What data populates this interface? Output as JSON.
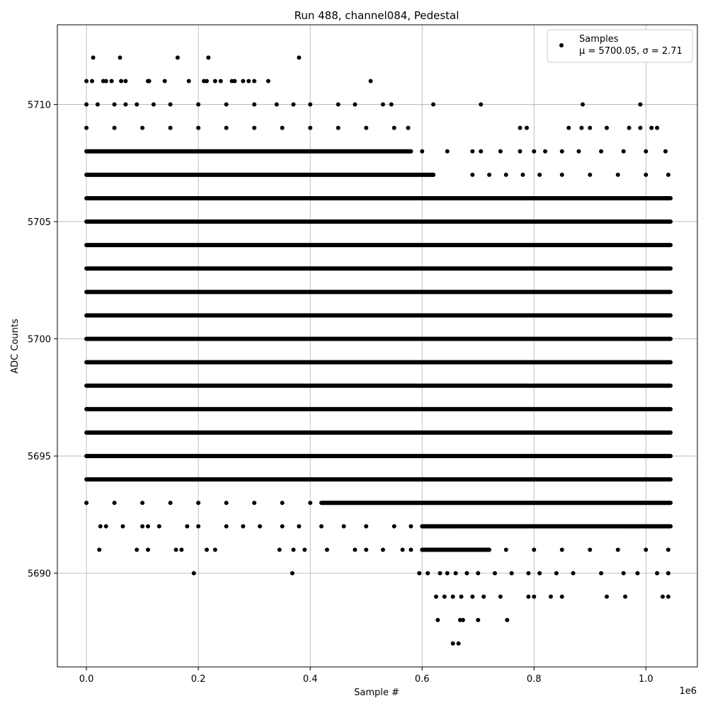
{
  "chart_data": {
    "type": "scatter",
    "title": "Run 488, channel084, Pedestal",
    "xlabel": "Sample #",
    "ylabel": "ADC Counts",
    "x_offset_label": "1e6",
    "xlim": [
      -0.052,
      1.092
    ],
    "ylim": [
      5686.0,
      5713.4
    ],
    "x_ticks": [
      0.0,
      0.2,
      0.4,
      0.6,
      0.8,
      1.0
    ],
    "x_tick_labels": [
      "0.0",
      "0.2",
      "0.4",
      "0.6",
      "0.8",
      "1.0"
    ],
    "y_ticks": [
      5690,
      5695,
      5700,
      5705,
      5710
    ],
    "y_tick_labels": [
      "5690",
      "5695",
      "5700",
      "5705",
      "5710"
    ],
    "grid": true,
    "legend_position": "top-right",
    "marker_color": "#000000",
    "series": [
      {
        "name": "Samples",
        "stats_label": "μ = 5700.05, σ = 2.71",
        "x_max": 1.044,
        "dense_bands": [
          {
            "y": 5694,
            "x_range": [
              0.0,
              1.044
            ]
          },
          {
            "y": 5695,
            "x_range": [
              0.0,
              1.044
            ]
          },
          {
            "y": 5696,
            "x_range": [
              0.0,
              1.044
            ]
          },
          {
            "y": 5697,
            "x_range": [
              0.0,
              1.044
            ]
          },
          {
            "y": 5698,
            "x_range": [
              0.0,
              1.044
            ]
          },
          {
            "y": 5699,
            "x_range": [
              0.0,
              1.044
            ]
          },
          {
            "y": 5700,
            "x_range": [
              0.0,
              1.044
            ]
          },
          {
            "y": 5701,
            "x_range": [
              0.0,
              1.044
            ]
          },
          {
            "y": 5702,
            "x_range": [
              0.0,
              1.044
            ]
          },
          {
            "y": 5703,
            "x_range": [
              0.0,
              1.044
            ]
          },
          {
            "y": 5704,
            "x_range": [
              0.0,
              1.044
            ]
          },
          {
            "y": 5705,
            "x_range": [
              0.0,
              1.044
            ]
          },
          {
            "y": 5706,
            "x_range": [
              0.0,
              1.044
            ]
          },
          {
            "y": 5707,
            "x_range": [
              0.0,
              0.62
            ]
          },
          {
            "y": 5708,
            "x_range": [
              0.0,
              0.58
            ]
          },
          {
            "y": 5693,
            "x_range": [
              0.42,
              1.044
            ]
          },
          {
            "y": 5692,
            "x_range": [
              0.6,
              1.044
            ]
          },
          {
            "y": 5691,
            "x_range": [
              0.6,
              0.72
            ]
          }
        ],
        "sparse_points": [
          [
            0.0,
            5711
          ],
          [
            0.01,
            5711
          ],
          [
            0.012,
            5712
          ],
          [
            0.03,
            5711
          ],
          [
            0.035,
            5711
          ],
          [
            0.045,
            5711
          ],
          [
            0.06,
            5712
          ],
          [
            0.062,
            5711
          ],
          [
            0.07,
            5711
          ],
          [
            0.11,
            5711
          ],
          [
            0.112,
            5711
          ],
          [
            0.14,
            5711
          ],
          [
            0.163,
            5712
          ],
          [
            0.183,
            5711
          ],
          [
            0.21,
            5711
          ],
          [
            0.215,
            5711
          ],
          [
            0.218,
            5712
          ],
          [
            0.23,
            5711
          ],
          [
            0.24,
            5711
          ],
          [
            0.26,
            5711
          ],
          [
            0.265,
            5711
          ],
          [
            0.28,
            5711
          ],
          [
            0.29,
            5711
          ],
          [
            0.3,
            5711
          ],
          [
            0.325,
            5711
          ],
          [
            0.38,
            5712
          ],
          [
            0.508,
            5711
          ],
          [
            0.0,
            5710
          ],
          [
            0.02,
            5710
          ],
          [
            0.05,
            5710
          ],
          [
            0.07,
            5710
          ],
          [
            0.09,
            5710
          ],
          [
            0.12,
            5710
          ],
          [
            0.15,
            5710
          ],
          [
            0.2,
            5710
          ],
          [
            0.25,
            5710
          ],
          [
            0.3,
            5710
          ],
          [
            0.34,
            5710
          ],
          [
            0.37,
            5710
          ],
          [
            0.4,
            5710
          ],
          [
            0.45,
            5710
          ],
          [
            0.48,
            5710
          ],
          [
            0.53,
            5710
          ],
          [
            0.545,
            5710
          ],
          [
            0.62,
            5710
          ],
          [
            0.705,
            5710
          ],
          [
            0.887,
            5710
          ],
          [
            0.99,
            5710
          ],
          [
            0.62,
            5707
          ],
          [
            0.69,
            5707
          ],
          [
            0.72,
            5707
          ],
          [
            0.75,
            5707
          ],
          [
            0.78,
            5707
          ],
          [
            0.81,
            5707
          ],
          [
            0.85,
            5707
          ],
          [
            0.9,
            5707
          ],
          [
            0.95,
            5707
          ],
          [
            1.0,
            5707
          ],
          [
            1.04,
            5707
          ],
          [
            0.6,
            5708
          ],
          [
            0.645,
            5708
          ],
          [
            0.69,
            5708
          ],
          [
            0.705,
            5708
          ],
          [
            0.74,
            5708
          ],
          [
            0.775,
            5708
          ],
          [
            0.8,
            5708
          ],
          [
            0.82,
            5708
          ],
          [
            0.85,
            5708
          ],
          [
            0.88,
            5708
          ],
          [
            0.92,
            5708
          ],
          [
            0.96,
            5708
          ],
          [
            1.0,
            5708
          ],
          [
            1.035,
            5708
          ],
          [
            0.0,
            5709
          ],
          [
            0.05,
            5709
          ],
          [
            0.1,
            5709
          ],
          [
            0.15,
            5709
          ],
          [
            0.2,
            5709
          ],
          [
            0.25,
            5709
          ],
          [
            0.3,
            5709
          ],
          [
            0.35,
            5709
          ],
          [
            0.4,
            5709
          ],
          [
            0.45,
            5709
          ],
          [
            0.5,
            5709
          ],
          [
            0.55,
            5709
          ],
          [
            0.575,
            5709
          ],
          [
            0.775,
            5709
          ],
          [
            0.787,
            5709
          ],
          [
            0.862,
            5709
          ],
          [
            0.885,
            5709
          ],
          [
            0.9,
            5709
          ],
          [
            0.93,
            5709
          ],
          [
            0.97,
            5709
          ],
          [
            0.99,
            5709
          ],
          [
            1.01,
            5709
          ],
          [
            1.02,
            5709
          ],
          [
            0.0,
            5693
          ],
          [
            0.05,
            5693
          ],
          [
            0.1,
            5693
          ],
          [
            0.15,
            5693
          ],
          [
            0.2,
            5693
          ],
          [
            0.25,
            5693
          ],
          [
            0.3,
            5693
          ],
          [
            0.35,
            5693
          ],
          [
            0.4,
            5693
          ],
          [
            0.025,
            5692
          ],
          [
            0.035,
            5692
          ],
          [
            0.065,
            5692
          ],
          [
            0.1,
            5692
          ],
          [
            0.11,
            5692
          ],
          [
            0.13,
            5692
          ],
          [
            0.18,
            5692
          ],
          [
            0.2,
            5692
          ],
          [
            0.25,
            5692
          ],
          [
            0.28,
            5692
          ],
          [
            0.31,
            5692
          ],
          [
            0.35,
            5692
          ],
          [
            0.38,
            5692
          ],
          [
            0.42,
            5692
          ],
          [
            0.46,
            5692
          ],
          [
            0.5,
            5692
          ],
          [
            0.55,
            5692
          ],
          [
            0.58,
            5692
          ],
          [
            0.023,
            5691
          ],
          [
            0.09,
            5691
          ],
          [
            0.11,
            5691
          ],
          [
            0.16,
            5691
          ],
          [
            0.17,
            5691
          ],
          [
            0.215,
            5691
          ],
          [
            0.23,
            5691
          ],
          [
            0.345,
            5691
          ],
          [
            0.37,
            5691
          ],
          [
            0.39,
            5691
          ],
          [
            0.43,
            5691
          ],
          [
            0.48,
            5691
          ],
          [
            0.5,
            5691
          ],
          [
            0.53,
            5691
          ],
          [
            0.565,
            5691
          ],
          [
            0.58,
            5691
          ],
          [
            0.75,
            5691
          ],
          [
            0.8,
            5691
          ],
          [
            0.85,
            5691
          ],
          [
            0.9,
            5691
          ],
          [
            0.95,
            5691
          ],
          [
            1.0,
            5691
          ],
          [
            1.04,
            5691
          ],
          [
            0.192,
            5690
          ],
          [
            0.368,
            5690
          ],
          [
            0.595,
            5690
          ],
          [
            0.61,
            5690
          ],
          [
            0.632,
            5690
          ],
          [
            0.645,
            5690
          ],
          [
            0.66,
            5690
          ],
          [
            0.68,
            5690
          ],
          [
            0.7,
            5690
          ],
          [
            0.73,
            5690
          ],
          [
            0.76,
            5690
          ],
          [
            0.79,
            5690
          ],
          [
            0.81,
            5690
          ],
          [
            0.84,
            5690
          ],
          [
            0.87,
            5690
          ],
          [
            0.92,
            5690
          ],
          [
            0.96,
            5690
          ],
          [
            0.985,
            5690
          ],
          [
            1.02,
            5690
          ],
          [
            1.04,
            5690
          ],
          [
            0.625,
            5689
          ],
          [
            0.64,
            5689
          ],
          [
            0.655,
            5689
          ],
          [
            0.67,
            5689
          ],
          [
            0.69,
            5689
          ],
          [
            0.71,
            5689
          ],
          [
            0.74,
            5689
          ],
          [
            0.79,
            5689
          ],
          [
            0.8,
            5689
          ],
          [
            0.83,
            5689
          ],
          [
            0.85,
            5689
          ],
          [
            0.93,
            5689
          ],
          [
            0.963,
            5689
          ],
          [
            1.03,
            5689
          ],
          [
            1.04,
            5689
          ],
          [
            0.628,
            5688
          ],
          [
            0.668,
            5688
          ],
          [
            0.673,
            5688
          ],
          [
            0.7,
            5688
          ],
          [
            0.752,
            5688
          ],
          [
            0.655,
            5687
          ],
          [
            0.665,
            5687
          ]
        ]
      }
    ]
  }
}
